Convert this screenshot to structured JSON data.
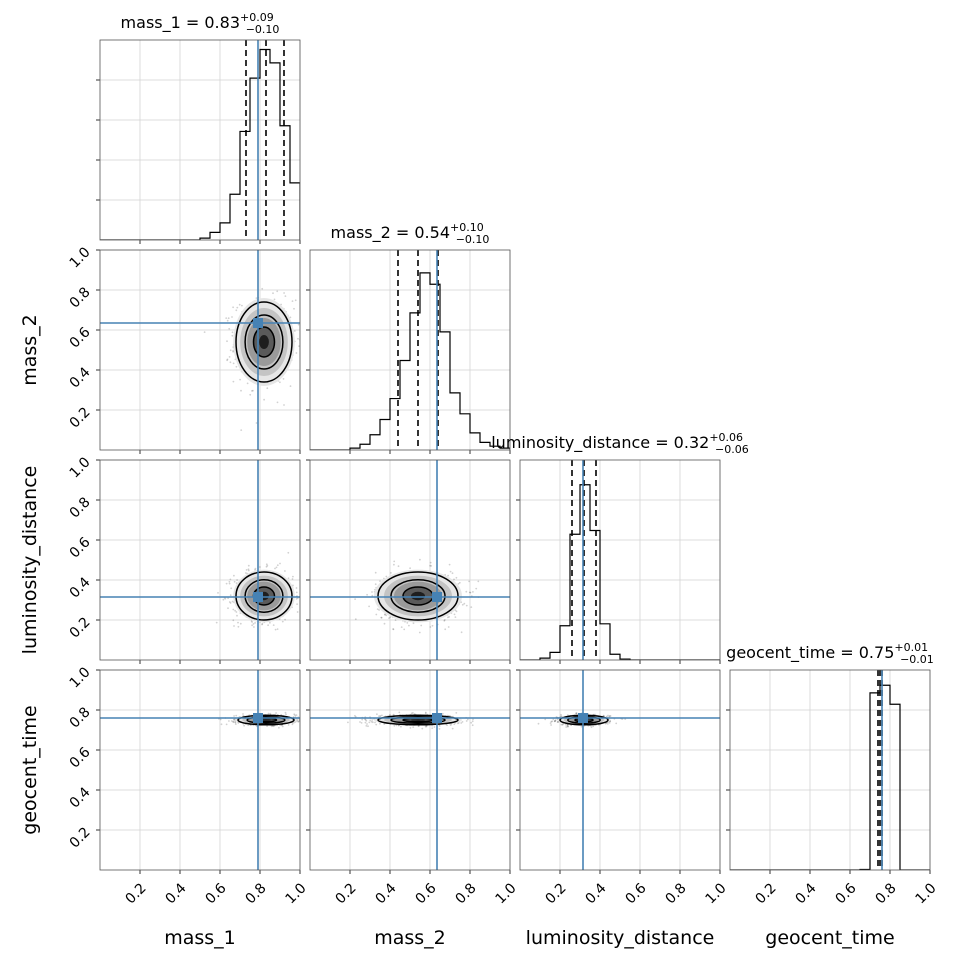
{
  "chart_data": {
    "type": "corner",
    "parameters": [
      "mass_1",
      "mass_2",
      "luminosity_distance",
      "geocent_time"
    ],
    "axis_labels": [
      "mass_1",
      "mass_2",
      "luminosity_distance",
      "geocent_time"
    ],
    "range": [
      0,
      1
    ],
    "ticks": [
      0.2,
      0.4,
      0.6,
      0.8,
      1.0
    ],
    "tick_labels": [
      "0.2",
      "0.4",
      "0.6",
      "0.8",
      "1.0"
    ],
    "grid": true,
    "titles": [
      {
        "param": "mass_1",
        "median": "0.83",
        "plus": "+0.09",
        "minus": "−0.10"
      },
      {
        "param": "mass_2",
        "median": "0.54",
        "plus": "+0.10",
        "minus": "−0.10"
      },
      {
        "param": "luminosity_distance",
        "median": "0.32",
        "plus": "+0.06",
        "minus": "−0.06"
      },
      {
        "param": "geocent_time",
        "median": "0.75",
        "plus": "+0.01",
        "minus": "−0.01"
      }
    ],
    "truths": [
      0.79,
      0.635,
      0.315,
      0.76
    ],
    "truth_color": "#4682b4",
    "quantiles": [
      [
        0.73,
        0.83,
        0.92
      ],
      [
        0.44,
        0.54,
        0.64
      ],
      [
        0.26,
        0.32,
        0.38
      ],
      [
        0.74,
        0.75,
        0.76
      ]
    ],
    "histograms": [
      {
        "bins": [
          0.5,
          0.55,
          0.6,
          0.65,
          0.7,
          0.75,
          0.8,
          0.85,
          0.9,
          0.95,
          1.0
        ],
        "counts": [
          0.01,
          0.04,
          0.09,
          0.24,
          0.57,
          0.85,
          1.0,
          0.93,
          0.6,
          0.3
        ]
      },
      {
        "bins": [
          0.2,
          0.25,
          0.3,
          0.35,
          0.4,
          0.45,
          0.5,
          0.55,
          0.6,
          0.65,
          0.7,
          0.75,
          0.8,
          0.85,
          0.9,
          0.95,
          1.0
        ],
        "counts": [
          0.01,
          0.03,
          0.08,
          0.16,
          0.27,
          0.47,
          0.72,
          0.93,
          0.87,
          0.62,
          0.3,
          0.19,
          0.09,
          0.04,
          0.02,
          0.01
        ]
      },
      {
        "bins": [
          0.1,
          0.15,
          0.2,
          0.25,
          0.3,
          0.35,
          0.4,
          0.45,
          0.5,
          0.55
        ],
        "counts": [
          0.01,
          0.04,
          0.18,
          0.66,
          0.92,
          0.68,
          0.19,
          0.03,
          0.005
        ]
      },
      {
        "bins": [
          0.65,
          0.7,
          0.75,
          0.8,
          0.85
        ],
        "counts": [
          0.003,
          0.93,
          0.97,
          0.87
        ]
      }
    ],
    "contours": [
      {
        "row": 1,
        "col": 0,
        "center": [
          0.82,
          0.54
        ],
        "sigma": [
          0.07,
          0.1
        ]
      },
      {
        "row": 2,
        "col": 0,
        "center": [
          0.82,
          0.32
        ],
        "sigma": [
          0.07,
          0.06
        ]
      },
      {
        "row": 2,
        "col": 1,
        "center": [
          0.54,
          0.32
        ],
        "sigma": [
          0.1,
          0.06
        ]
      },
      {
        "row": 3,
        "col": 0,
        "center": [
          0.83,
          0.75
        ],
        "sigma": [
          0.07,
          0.012
        ]
      },
      {
        "row": 3,
        "col": 1,
        "center": [
          0.54,
          0.75
        ],
        "sigma": [
          0.1,
          0.012
        ]
      },
      {
        "row": 3,
        "col": 2,
        "center": [
          0.32,
          0.75
        ],
        "sigma": [
          0.06,
          0.012
        ]
      }
    ]
  }
}
